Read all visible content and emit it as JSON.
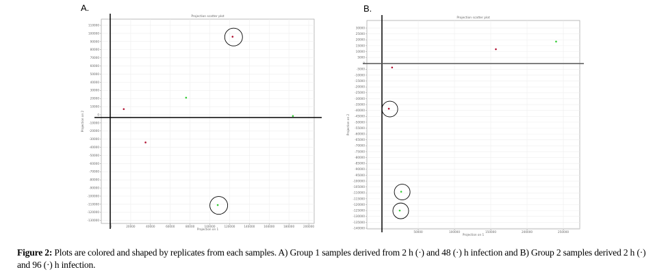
{
  "chart_data": [
    {
      "type": "scatter",
      "panel_label": "A.",
      "title": "Projection scatter plot",
      "xlabel": "Projection on 1",
      "ylabel": "Projection on 2",
      "xlim": [
        -9700,
        205500
      ],
      "ylim": [
        -133600,
        117600
      ],
      "grid": true,
      "xticks": [
        0,
        20000,
        40000,
        60000,
        80000,
        100000,
        120000,
        140000,
        160000,
        180000,
        200000
      ],
      "xtick_labels": [
        "0",
        "20000",
        "40000",
        "60000",
        "80000",
        "100000",
        "120000",
        "140000",
        "160000",
        "180000",
        "200000"
      ],
      "yticks": [
        110000,
        100000,
        90000,
        80000,
        70000,
        60000,
        50000,
        40000,
        30000,
        20000,
        10000,
        0,
        -10000,
        -20000,
        -30000,
        -40000,
        -50000,
        -60000,
        -70000,
        -80000,
        -90000,
        -100000,
        -110000,
        -120000,
        -130000
      ],
      "ytick_labels": [
        "110000",
        "100000",
        "90000",
        "80000",
        "70000",
        "60000",
        "50000",
        "40000",
        "30000",
        "20000",
        "10000",
        "0",
        "-10000",
        "-20000",
        "-30000",
        "-40000",
        "-50000",
        "-60000",
        "-70000",
        "-80000",
        "-90000",
        "-100000",
        "-110000",
        "-120000",
        "-130000"
      ],
      "series": [
        {
          "name": "2 h",
          "color": "#b01030",
          "points": [
            {
              "x": 13000,
              "y": 7000,
              "circled": false
            },
            {
              "x": 123000,
              "y": 96000,
              "circled": true
            },
            {
              "x": 35000,
              "y": -34000,
              "circled": false
            }
          ]
        },
        {
          "name": "48 h",
          "color": "#33cc33",
          "points": [
            {
              "x": 76000,
              "y": 21000,
              "circled": false
            },
            {
              "x": 184000,
              "y": -1500,
              "circled": false
            },
            {
              "x": 108000,
              "y": -111000,
              "circled": true
            }
          ]
        }
      ]
    },
    {
      "type": "scatter",
      "panel_label": "B.",
      "title": "Projection scatter plot",
      "xlabel": "Projection on 1",
      "ylabel": "Projection on 2",
      "xlim": [
        -20750,
        272600
      ],
      "ylim": [
        -140600,
        36400
      ],
      "grid": true,
      "xticks": [
        50000,
        100000,
        150000,
        200000,
        250000
      ],
      "xtick_labels": [
        "50000",
        "100000",
        "150000",
        "200000",
        "250000"
      ],
      "yticks": [
        30000,
        25000,
        20000,
        15000,
        10000,
        5000,
        0,
        -5000,
        -10000,
        -15000,
        -20000,
        -25000,
        -30000,
        -35000,
        -40000,
        -45000,
        -50000,
        -55000,
        -60000,
        -65000,
        -70000,
        -75000,
        -80000,
        -85000,
        -90000,
        -95000,
        -100000,
        -105000,
        -110000,
        -115000,
        -120000,
        -125000,
        -130000,
        -135000,
        -140000
      ],
      "ytick_labels": [
        "30000",
        "25000",
        "20000",
        "15000",
        "10000",
        "5000",
        "0",
        "-5000",
        "-10000",
        "-15000",
        "-20000",
        "-25000",
        "-30000",
        "-35000",
        "-40000",
        "-45000",
        "-50000",
        "-55000",
        "-60000",
        "-65000",
        "-70000",
        "-75000",
        "-80000",
        "-85000",
        "-90000",
        "-95000",
        "-100000",
        "-105000",
        "-110000",
        "-115000",
        "-120000",
        "-125000",
        "-130000",
        "-135000",
        "-140000"
      ],
      "series": [
        {
          "name": "2 h",
          "color": "#b01030",
          "points": [
            {
              "x": 14000,
              "y": -3500,
              "circled": false
            },
            {
              "x": 157000,
              "y": 12000,
              "circled": false
            },
            {
              "x": 9500,
              "y": -38500,
              "circled": true
            }
          ]
        },
        {
          "name": "96 h",
          "color": "#33cc33",
          "points": [
            {
              "x": 240000,
              "y": 18500,
              "circled": false
            },
            {
              "x": 26500,
              "y": -109000,
              "circled": true
            },
            {
              "x": 24500,
              "y": -125000,
              "circled": true
            }
          ]
        }
      ]
    }
  ],
  "caption": {
    "label": "Figure 2:",
    "text": "Plots are colored and shaped by replicates from each samples. A) Group 1 samples derived from 2 h (·) and 48 (·) h infection and B) Group 2 samples derived 2 h (·) and 96 (·) h infection."
  }
}
